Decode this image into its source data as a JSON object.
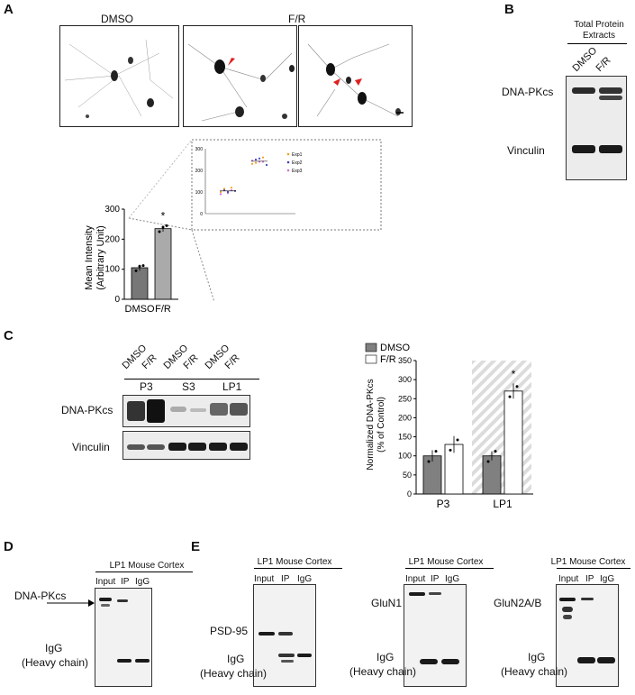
{
  "panelA": {
    "letter": "A",
    "dmso_label": "DMSO",
    "fr_label": "F/R",
    "chart_data": {
      "type": "bar",
      "categories": [
        "DMSO",
        "F/R"
      ],
      "values": [
        105,
        235
      ],
      "ylabel": "Mean Intensity (Arbitrary Unit)",
      "ylabel_line1": "Mean Intensity",
      "ylabel_line2": "(Arbitrary Unit)",
      "ylim": [
        0,
        300
      ],
      "yticks": [
        "0",
        "100",
        "200",
        "300"
      ],
      "significance": "*",
      "inset": {
        "yticks": [
          "0",
          "100",
          "200",
          "300"
        ],
        "legend": [
          "Exp1",
          "Exp2",
          "Exp3"
        ],
        "colors": [
          "#f4a020",
          "#4040c0",
          "#d070d0"
        ]
      }
    }
  },
  "panelB": {
    "letter": "B",
    "header_line1": "Total Protein",
    "header_line2": "Extracts",
    "lanes": [
      "DMSO",
      "F/R"
    ],
    "row1": "DNA-PKcs",
    "row2": "Vinculin"
  },
  "panelC": {
    "letter": "C",
    "lanes": [
      "DMSO",
      "F/R",
      "DMSO",
      "F/R",
      "DMSO",
      "F/R"
    ],
    "groups": [
      "P3",
      "S3",
      "LP1"
    ],
    "row1": "DNA-PKcs",
    "row2": "Vinculin",
    "chart_data": {
      "type": "bar",
      "categories": [
        "P3",
        "LP1"
      ],
      "series": [
        {
          "name": "DMSO",
          "values": [
            100,
            100
          ]
        },
        {
          "name": "F/R",
          "values": [
            130,
            270
          ]
        }
      ],
      "ylabel": "Normalized DNA-PKcs (% of Control)",
      "ylabel_line1": "Normalized  DNA-PKcs",
      "ylabel_line2": "(% of Control)",
      "ylim": [
        0,
        350
      ],
      "yticks": [
        "0",
        "50",
        "100",
        "150",
        "200",
        "250",
        "300",
        "350"
      ],
      "significance": "*",
      "legend_placement": "top",
      "colors": {
        "DMSO": "#808080",
        "F/R": "#ffffff"
      }
    }
  },
  "panelD": {
    "letter": "D",
    "header": "LP1 Mouse Cortex",
    "lanes": [
      "Input",
      "IP",
      "IgG"
    ],
    "target": "DNA-PKcs",
    "igg_line1": "IgG",
    "igg_line2": "(Heavy chain)"
  },
  "panelE": {
    "letter": "E",
    "blots": [
      {
        "header": "LP1 Mouse Cortex",
        "lanes": [
          "Input",
          "IP",
          "IgG"
        ],
        "target": "PSD-95",
        "igg_line1": "IgG",
        "igg_line2": "(Heavy chain)"
      },
      {
        "header": "LP1 Mouse Cortex",
        "lanes": [
          "Input",
          "IP",
          "IgG"
        ],
        "target": "GluN1",
        "igg_line1": "IgG",
        "igg_line2": "(Heavy chain)"
      },
      {
        "header": "LP1 Mouse Cortex",
        "lanes": [
          "Input",
          "IP",
          "IgG"
        ],
        "target": "GluN2A/B",
        "igg_line1": "IgG",
        "igg_line2": "(Heavy chain)"
      }
    ]
  }
}
